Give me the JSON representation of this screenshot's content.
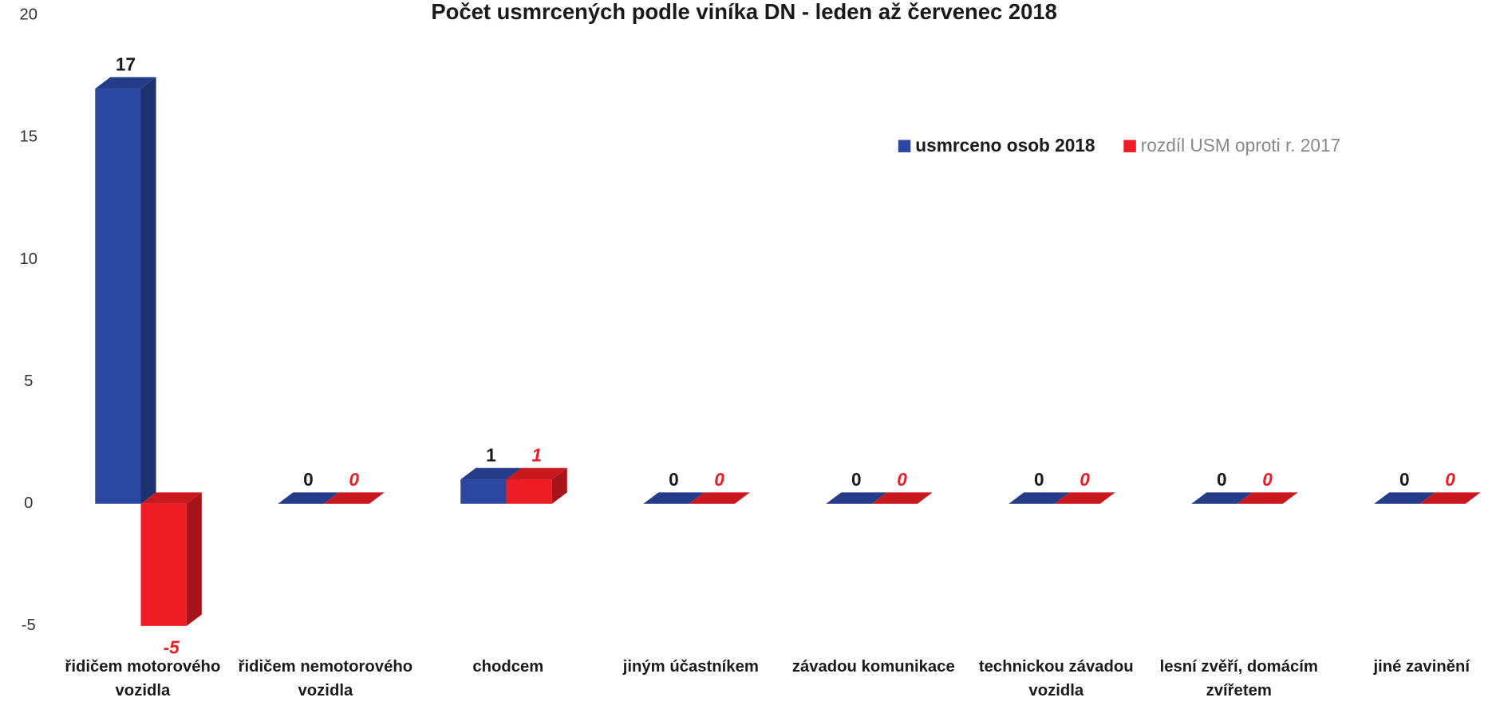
{
  "chart_data": {
    "type": "bar3d",
    "title": "Počet usmrcených podle viníka DN - leden až červenec 2018",
    "categories": [
      "řidičem motorového vozidla",
      "řidičem nemotorového vozidla",
      "chodcem",
      "jiným účastníkem",
      "závadou komunikace",
      "technickou závadou vozidla",
      "lesní zvěří, domácím zvířetem",
      "jiné zavinění"
    ],
    "series": [
      {
        "name": "usmrceno osob 2018",
        "color": "#2b47a0",
        "values": [
          17,
          0,
          1,
          0,
          0,
          0,
          0,
          0
        ]
      },
      {
        "name": "rozdíl USM oproti r. 2017",
        "color": "#ee1c25",
        "values": [
          -5,
          0,
          1,
          0,
          0,
          0,
          0,
          0
        ]
      }
    ],
    "ylim": [
      -5,
      20
    ],
    "yticks": [
      -5,
      0,
      5,
      10,
      15,
      20
    ],
    "grid": false,
    "legend": "top-right"
  }
}
